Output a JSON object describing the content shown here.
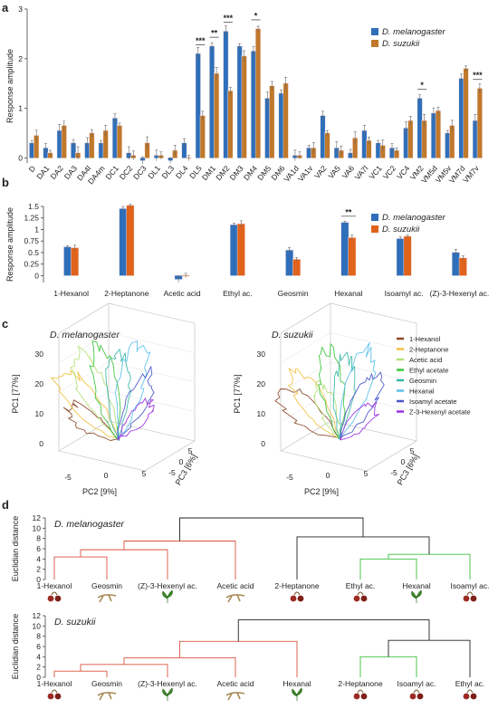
{
  "panels": {
    "a": "a",
    "b": "b",
    "c": "c",
    "d": "d"
  },
  "colors": {
    "melanogaster": "#2f6fba",
    "suzukii": "#c0782a",
    "suzukii_b": "#e0631c",
    "shade": "#f6dfe4",
    "sigline": "#333333",
    "dendro_red": "#d9533f",
    "dendro_green": "#3cbf3c",
    "dendro_black": "#222222"
  },
  "chart_data": [
    {
      "id": "a",
      "type": "bar",
      "ylabel": "Response amplitude",
      "ylim": [
        -0.1,
        3
      ],
      "yticks": [
        0,
        1,
        2,
        3
      ],
      "legend": [
        "D. melanogaster",
        "D. suzukii"
      ],
      "legend_position": "top-right",
      "categories": [
        "D",
        "DA1",
        "DA2",
        "DA3",
        "DA4l",
        "DA4m",
        "DC1",
        "DC2",
        "DC3",
        "DL1",
        "DL3",
        "DL4",
        "DL5",
        "DM1",
        "DM2",
        "DM3",
        "DM4",
        "DM5",
        "DM6",
        "VA1d",
        "VA1v",
        "VA2",
        "VA5",
        "VA6",
        "VA7l",
        "VC1",
        "VC2",
        "VC4",
        "VM2",
        "VM5d",
        "VM5v",
        "VM7d",
        "VM7v"
      ],
      "series": [
        {
          "name": "D. melanogaster",
          "values": [
            0.3,
            0.2,
            0.55,
            0.3,
            0.3,
            0.3,
            0.8,
            0.1,
            -0.05,
            0.05,
            -0.05,
            0.3,
            2.1,
            2.25,
            2.55,
            2.25,
            2.15,
            1.2,
            1.3,
            0.05,
            0.2,
            0.85,
            0.2,
            0.1,
            0.55,
            0.3,
            0.2,
            0.6,
            1.2,
            0.9,
            0.5,
            1.6,
            0.75
          ]
        },
        {
          "name": "D. suzukii",
          "values": [
            0.45,
            0.1,
            0.65,
            0.1,
            0.5,
            0.55,
            0.65,
            0.05,
            0.3,
            0.05,
            0.15,
            0.0,
            0.85,
            1.7,
            1.35,
            2.05,
            2.6,
            1.45,
            1.5,
            0.05,
            0.2,
            0.5,
            0.15,
            0.4,
            0.35,
            0.25,
            0.15,
            0.75,
            0.75,
            0.95,
            0.65,
            1.8,
            1.4
          ]
        }
      ],
      "significance": [
        {
          "category": "DL5",
          "label": "***"
        },
        {
          "category": "DM1",
          "label": "**"
        },
        {
          "category": "DM2",
          "label": "***"
        },
        {
          "category": "DM4",
          "label": "*"
        },
        {
          "category": "VM2",
          "label": "*"
        },
        {
          "category": "VM7v",
          "label": "***"
        }
      ]
    },
    {
      "id": "b",
      "type": "bar",
      "ylabel": "Response amplitude",
      "ylim": [
        -0.15,
        1.5
      ],
      "yticks": [
        0,
        0.25,
        0.5,
        0.75,
        1,
        1.25,
        1.5
      ],
      "yticklabels": [
        "0",
        "0.25",
        "0.5",
        "0.75",
        "1",
        "1.25",
        "1.5"
      ],
      "legend": [
        "D. melanogaster",
        "D. suzukii"
      ],
      "legend_position": "top-right",
      "categories": [
        "1-Hexanol",
        "2-Heptanone",
        "Acetic acid",
        "Ethyl ac.",
        "Geosmin",
        "Hexanal",
        "Isoamyl ac.",
        "(Z)-3-Hexenyl ac."
      ],
      "series": [
        {
          "name": "D. melanogaster",
          "values": [
            0.62,
            1.45,
            -0.08,
            1.1,
            0.55,
            1.15,
            0.8,
            0.5
          ]
        },
        {
          "name": "D. suzukii",
          "values": [
            0.6,
            1.52,
            0.0,
            1.12,
            0.35,
            0.82,
            0.85,
            0.38
          ]
        }
      ],
      "significance": [
        {
          "category": "Hexanal",
          "label": "**"
        }
      ]
    },
    {
      "id": "c",
      "type": "line",
      "plots": [
        {
          "title": "D. melanogaster",
          "xlabel": "PC2 [9%]",
          "ylabel": "PC1 [77%]",
          "zlabel": "PC3 [6%]",
          "xticks": [
            "-5",
            "0",
            "5"
          ],
          "yticks": [
            "0",
            "10",
            "20",
            "30"
          ],
          "zticks": [
            "-5",
            "0",
            "5"
          ]
        },
        {
          "title": "D. suzukii",
          "xlabel": "PC2 [9%]",
          "ylabel": "PC1 [77%]",
          "zlabel": "PC3 [6%]",
          "xticks": [
            "-5",
            "0",
            "5"
          ],
          "yticks": [
            "0",
            "10",
            "20",
            "30"
          ],
          "zticks": [
            "-5",
            "0",
            "5"
          ]
        }
      ],
      "legend": [
        {
          "name": "1-Hexanol",
          "color": "#8b4a2b"
        },
        {
          "name": "2-Heptanone",
          "color": "#f0c040"
        },
        {
          "name": "Acetic acid",
          "color": "#b5e07a"
        },
        {
          "name": "Ethyl acetate",
          "color": "#3cc43c"
        },
        {
          "name": "Geosmin",
          "color": "#3ab7a6"
        },
        {
          "name": "Hexanal",
          "color": "#5bc0eb"
        },
        {
          "name": "Isoamyl acetate",
          "color": "#4a55c8"
        },
        {
          "name": "Z-3-Hexenyl acetate",
          "color": "#9b30e0"
        }
      ],
      "legend_position": "right"
    },
    {
      "id": "d",
      "type": "table",
      "subtype": "dendrogram",
      "dendrograms": [
        {
          "title": "D. melanogaster",
          "ylabel": "Euclidian distance",
          "yticks": [
            0,
            2,
            4,
            6,
            8,
            10,
            12
          ],
          "leaves": [
            "1-Hexanol",
            "Geosmin",
            "(Z)-3-Hexenyl ac.",
            "Acetic acid",
            "2-Heptanone",
            "Ethyl ac.",
            "Hexanal",
            "Isoamyl ac."
          ],
          "leaf_icons": [
            "cherry-icon",
            "root-icon",
            "leaf-icon",
            "root-icon",
            "cherry-icon",
            "cherry-icon",
            "leaf-icon",
            "cherry-icon"
          ]
        },
        {
          "title": "D. suzukii",
          "ylabel": "Euclidian distance",
          "yticks": [
            0,
            2,
            4,
            6,
            8,
            10,
            12
          ],
          "leaves": [
            "1-Hexanol",
            "Geosmin",
            "(Z)-3-Hexenyl ac.",
            "Acetic acid",
            "Hexanal",
            "2-Heptanone",
            "Isoamyl ac.",
            "Ethyl ac."
          ],
          "leaf_icons": [
            "cherry-icon",
            "root-icon",
            "leaf-icon",
            "root-icon",
            "leaf-icon",
            "cherry-icon",
            "cherry-icon",
            "cherry-icon"
          ]
        }
      ]
    }
  ]
}
